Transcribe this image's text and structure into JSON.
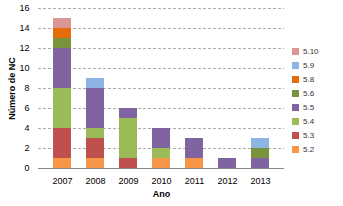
{
  "chart_data": {
    "type": "bar",
    "stacked": true,
    "xlabel": "Ano",
    "ylabel": "Número de NC",
    "categories": [
      "2007",
      "2008",
      "2009",
      "2010",
      "2011",
      "2012",
      "2013"
    ],
    "series": [
      {
        "name": "5.2",
        "color": "#f79646",
        "values": [
          1,
          1,
          0,
          1,
          1,
          0,
          0
        ]
      },
      {
        "name": "5.3",
        "color": "#c0504d",
        "values": [
          3,
          2,
          1,
          0,
          0,
          0,
          0
        ]
      },
      {
        "name": "5.4",
        "color": "#9bbb59",
        "values": [
          4,
          1,
          4,
          1,
          0,
          0,
          0
        ]
      },
      {
        "name": "5.5",
        "color": "#8064a2",
        "values": [
          4,
          4,
          1,
          2,
          2,
          1,
          1
        ]
      },
      {
        "name": "5.6",
        "color": "#77933c",
        "values": [
          1,
          0,
          0,
          0,
          0,
          0,
          1
        ]
      },
      {
        "name": "5.8",
        "color": "#e46c0a",
        "values": [
          1,
          0,
          0,
          0,
          0,
          0,
          0
        ]
      },
      {
        "name": "5.9",
        "color": "#8eb4e3",
        "values": [
          0,
          1,
          0,
          0,
          0,
          0,
          1
        ]
      },
      {
        "name": "5.10",
        "color": "#d99694",
        "values": [
          1,
          0,
          0,
          0,
          0,
          0,
          0
        ]
      }
    ],
    "ylim": [
      0,
      16
    ],
    "yticks": [
      0,
      2,
      4,
      6,
      8,
      10,
      12,
      14,
      16
    ],
    "grid": true,
    "legend": "right"
  }
}
